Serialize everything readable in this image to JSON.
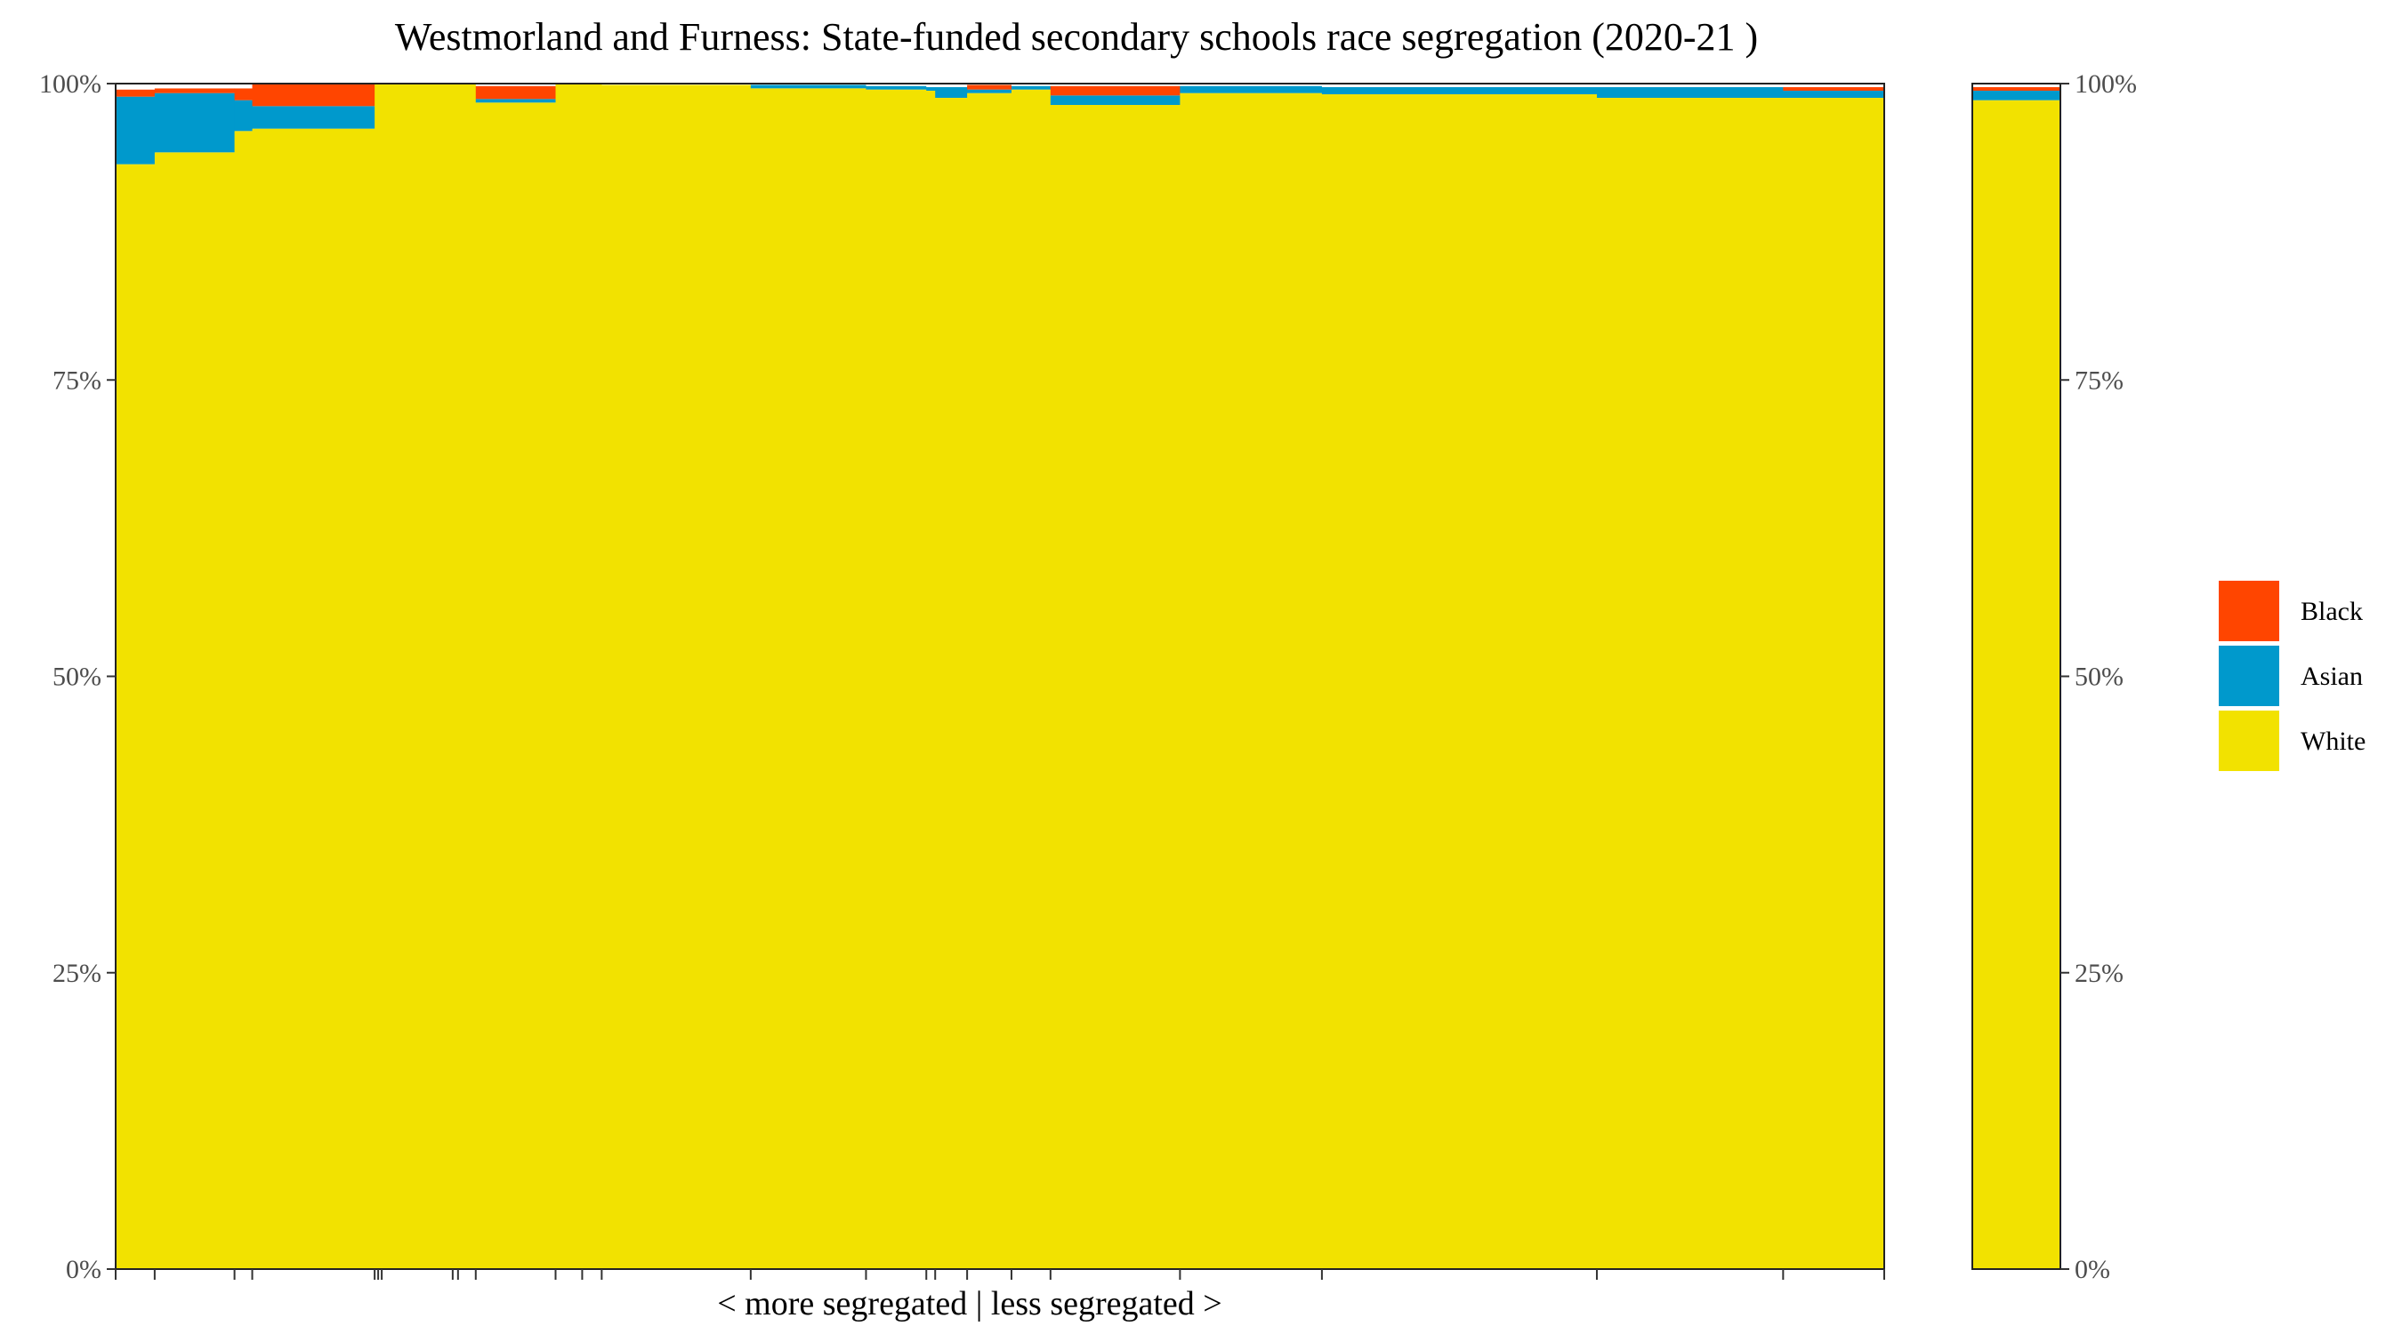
{
  "chart_data": {
    "type": "bar",
    "subtype": "stacked-proportional-variable-width",
    "title": "Westmorland and Furness: State-funded secondary schools race segregation (2020-21 )",
    "xlabel": "< more segregated | less segregated >",
    "ylabel": "",
    "ylim": [
      0,
      1
    ],
    "y_ticks": [
      "0%",
      "25%",
      "50%",
      "75%",
      "100%"
    ],
    "y_tick_values": [
      0,
      0.25,
      0.5,
      0.75,
      1
    ],
    "y_axis_both_sides": true,
    "grid": false,
    "legend_position": "right",
    "colors": {
      "Black": "#FF4500",
      "Asian": "#0099CC",
      "White": "#F2E200",
      "Other": "#FFFFFF"
    },
    "legend": [
      "Black",
      "Asian",
      "White"
    ],
    "stack_order_top_to_bottom": [
      "Black",
      "Asian",
      "White",
      "Other"
    ],
    "schools": [
      {
        "width": 0.022,
        "Black": 0.006,
        "Asian": 0.057,
        "White": 0.932
      },
      {
        "width": 0.045,
        "Black": 0.004,
        "Asian": 0.05,
        "White": 0.942
      },
      {
        "width": 0.01,
        "Black": 0.01,
        "Asian": 0.026,
        "White": 0.96
      },
      {
        "width": 0.069,
        "Black": 0.019,
        "Asian": 0.019,
        "White": 0.962
      },
      {
        "width": 0.002,
        "Black": 0.0,
        "Asian": 0.0,
        "White": 1.0
      },
      {
        "width": 0.002,
        "Black": 0.0,
        "Asian": 0.0,
        "White": 1.0
      },
      {
        "width": 0.04,
        "Black": 0.0,
        "Asian": 0.0,
        "White": 1.0
      },
      {
        "width": 0.003,
        "Black": 0.0,
        "Asian": 0.0,
        "White": 1.0
      },
      {
        "width": 0.01,
        "Black": 0.0,
        "Asian": 0.0,
        "White": 1.0
      },
      {
        "width": 0.045,
        "Black": 0.011,
        "Asian": 0.003,
        "White": 0.984
      },
      {
        "width": 0.015,
        "Black": 0.0,
        "Asian": 0.0,
        "White": 1.0
      },
      {
        "width": 0.011,
        "Black": 0.0,
        "Asian": 0.0,
        "White": 1.0
      },
      {
        "width": 0.084,
        "Black": 0.0,
        "Asian": 0.0,
        "White": 0.999
      },
      {
        "width": 0.065,
        "Black": 0.0,
        "Asian": 0.003,
        "White": 0.996
      },
      {
        "width": 0.034,
        "Black": 0.0,
        "Asian": 0.003,
        "White": 0.995
      },
      {
        "width": 0.005,
        "Black": 0.0,
        "Asian": 0.003,
        "White": 0.994
      },
      {
        "width": 0.018,
        "Black": 0.0,
        "Asian": 0.009,
        "White": 0.988
      },
      {
        "width": 0.025,
        "Black": 0.004,
        "Asian": 0.003,
        "White": 0.992
      },
      {
        "width": 0.022,
        "Black": 0.0,
        "Asian": 0.003,
        "White": 0.995
      },
      {
        "width": 0.073,
        "Black": 0.008,
        "Asian": 0.008,
        "White": 0.982
      },
      {
        "width": 0.08,
        "Black": 0.0,
        "Asian": 0.006,
        "White": 0.992
      },
      {
        "width": 0.155,
        "Black": 0.0,
        "Asian": 0.006,
        "White": 0.991
      },
      {
        "width": 0.105,
        "Black": 0.0,
        "Asian": 0.009,
        "White": 0.988
      },
      {
        "width": 0.057,
        "Black": 0.003,
        "Asian": 0.006,
        "White": 0.988
      }
    ],
    "overall": {
      "Black": 0.003,
      "Asian": 0.008,
      "White": 0.986
    }
  }
}
